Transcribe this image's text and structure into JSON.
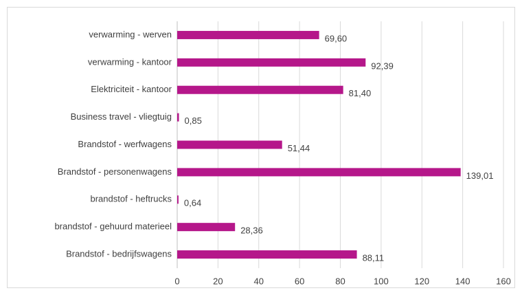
{
  "chart_data": {
    "type": "barh",
    "categories": [
      "verwarming - werven",
      "verwarming - kantoor",
      "Elektriciteit - kantoor",
      "Business travel - vliegtuig",
      "Brandstof - werfwagens",
      "Brandstof - personenwagens",
      "brandstof - heftrucks",
      "brandstof - gehuurd materieel",
      "Brandstof - bedrijfswagens"
    ],
    "values": [
      69.6,
      92.39,
      81.4,
      0.85,
      51.44,
      139.01,
      0.64,
      28.36,
      88.11
    ],
    "value_labels": [
      "69,60",
      "92,39",
      "81,40",
      "0,85",
      "51,44",
      "139,01",
      "0,64",
      "28,36",
      "88,11"
    ],
    "color": "#b5178a",
    "xlim": [
      0,
      160
    ],
    "xticks": [
      0,
      20,
      40,
      60,
      80,
      100,
      120,
      140,
      160
    ],
    "grid": true
  }
}
